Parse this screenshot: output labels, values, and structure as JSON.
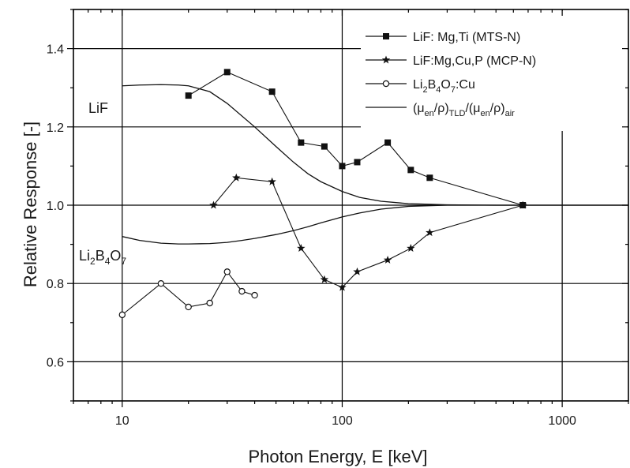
{
  "chart_data": {
    "type": "line",
    "xlabel": "Photon Energy, E [keV]",
    "ylabel": "Relative Response [-]",
    "xscale": "log",
    "xlim": [
      6,
      2000
    ],
    "ylim": [
      0.5,
      1.5
    ],
    "x_ticks": [
      10,
      100,
      1000
    ],
    "x_tick_labels": [
      "10",
      "100",
      "1000"
    ],
    "y_ticks": [
      0.6,
      0.8,
      1.0,
      1.2,
      1.4
    ],
    "y_tick_labels": [
      "0.6",
      "0.8",
      "1.0",
      "1.2",
      "1.4"
    ],
    "grid": true,
    "legend_position": "top-right",
    "series": [
      {
        "name": "LiF: Mg,Ti (MTS-N)",
        "marker": "filled-square",
        "x": [
          20,
          30,
          48,
          65,
          83,
          100,
          117,
          161,
          205,
          250,
          662
        ],
        "y": [
          1.28,
          1.34,
          1.29,
          1.16,
          1.15,
          1.1,
          1.11,
          1.16,
          1.09,
          1.07,
          1.0
        ]
      },
      {
        "name": "LiF:Mg,Cu,P (MCP-N)",
        "marker": "star",
        "x": [
          26,
          33,
          48,
          65,
          83,
          100,
          117,
          161,
          205,
          250,
          662
        ],
        "y": [
          1.0,
          1.07,
          1.06,
          0.89,
          0.81,
          0.79,
          0.83,
          0.86,
          0.89,
          0.93,
          1.0
        ]
      },
      {
        "name_parts": [
          [
            "Li",
            ""
          ],
          [
            "2",
            "sub"
          ],
          [
            "B",
            ""
          ],
          [
            "4",
            "sub"
          ],
          [
            "O",
            ""
          ],
          [
            "7",
            "sub"
          ],
          [
            ":Cu",
            ""
          ]
        ],
        "marker": "open-circle",
        "x": [
          10,
          15,
          20,
          25,
          30,
          35,
          40
        ],
        "y": [
          0.72,
          0.8,
          0.74,
          0.75,
          0.83,
          0.78,
          0.77
        ]
      },
      {
        "name_parts": [
          [
            "(μ",
            ""
          ],
          [
            "en",
            "sub"
          ],
          [
            "/ρ)",
            ""
          ],
          [
            "TLD",
            "sub"
          ],
          [
            "/(μ",
            ""
          ],
          [
            "en",
            "sub"
          ],
          [
            "/ρ)",
            ""
          ],
          [
            "air",
            "sub"
          ]
        ],
        "marker": "none",
        "curves": [
          {
            "label_parts": [
              [
                "LiF",
                ""
              ]
            ],
            "x": [
              10,
              12,
              15,
              18,
              20,
              25,
              30,
              40,
              50,
              60,
              70,
              80,
              100,
              120,
              150,
              200,
              300,
              500,
              700,
              1000,
              2000
            ],
            "y": [
              1.305,
              1.307,
              1.308,
              1.307,
              1.305,
              1.29,
              1.26,
              1.2,
              1.15,
              1.11,
              1.08,
              1.06,
              1.035,
              1.02,
              1.01,
              1.004,
              1.001,
              1.0,
              1.0,
              1.0,
              1.0
            ]
          },
          {
            "label_parts": [
              [
                "Li",
                ""
              ],
              [
                "2",
                "sub"
              ],
              [
                "B",
                ""
              ],
              [
                "4",
                "sub"
              ],
              [
                "O",
                ""
              ],
              [
                "7",
                "sub"
              ]
            ],
            "x": [
              10,
              12,
              15,
              18,
              20,
              25,
              30,
              35,
              40,
              50,
              60,
              70,
              80,
              100,
              120,
              150,
              200,
              300,
              500,
              1000,
              2000
            ],
            "y": [
              0.92,
              0.91,
              0.903,
              0.901,
              0.901,
              0.902,
              0.905,
              0.91,
              0.915,
              0.925,
              0.935,
              0.945,
              0.955,
              0.97,
              0.98,
              0.99,
              0.997,
              1.0,
              1.0,
              1.0,
              1.0
            ]
          }
        ]
      }
    ]
  }
}
